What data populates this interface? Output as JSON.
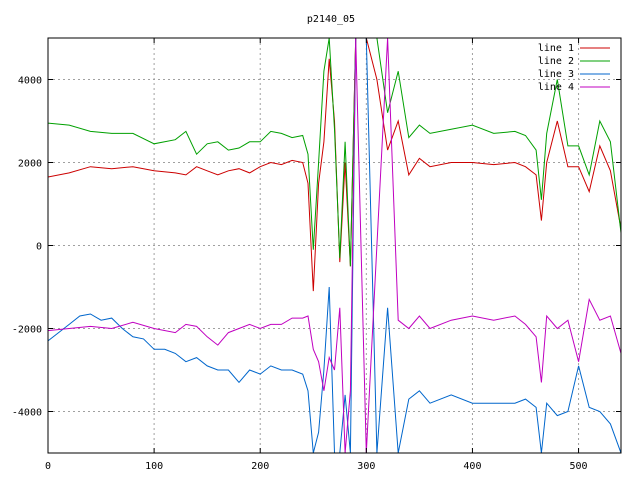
{
  "chart_data": {
    "type": "line",
    "title": "p2140_05",
    "xlabel": "",
    "ylabel": "",
    "xlim": [
      0,
      540
    ],
    "ylim": [
      -5000,
      5000
    ],
    "xticks": [
      0,
      100,
      200,
      300,
      400,
      500
    ],
    "yticks": [
      -4000,
      -2000,
      0,
      2000,
      4000
    ],
    "grid": true,
    "legend_position": "top-right",
    "series": [
      {
        "name": "line 1",
        "color": "#cc0000",
        "x": [
          0,
          20,
          40,
          60,
          80,
          100,
          120,
          130,
          140,
          150,
          160,
          170,
          180,
          190,
          200,
          210,
          220,
          230,
          240,
          245,
          250,
          255,
          260,
          265,
          270,
          275,
          280,
          285,
          290,
          300,
          310,
          320,
          330,
          340,
          350,
          360,
          380,
          400,
          420,
          440,
          450,
          460,
          465,
          470,
          480,
          490,
          500,
          510,
          520,
          530,
          540
        ],
        "y": [
          1650,
          1750,
          1900,
          1850,
          1900,
          1800,
          1750,
          1700,
          1900,
          1800,
          1700,
          1800,
          1850,
          1750,
          1900,
          2000,
          1950,
          2050,
          2000,
          1500,
          -1100,
          1500,
          2500,
          4500,
          3000,
          -400,
          2000,
          -500,
          5000,
          5000,
          4000,
          2300,
          3000,
          1700,
          2100,
          1900,
          2000,
          2000,
          1950,
          2000,
          1900,
          1700,
          600,
          2000,
          3000,
          1900,
          1900,
          1300,
          2400,
          1800,
          400
        ]
      },
      {
        "name": "line 2",
        "color": "#00a000",
        "x": [
          0,
          20,
          40,
          60,
          80,
          100,
          120,
          130,
          140,
          150,
          160,
          170,
          180,
          190,
          200,
          210,
          220,
          230,
          240,
          245,
          250,
          255,
          260,
          265,
          270,
          275,
          280,
          285,
          290,
          300,
          310,
          320,
          330,
          340,
          350,
          360,
          380,
          400,
          420,
          440,
          450,
          460,
          465,
          470,
          480,
          490,
          500,
          510,
          520,
          530,
          540
        ],
        "y": [
          2950,
          2900,
          2750,
          2700,
          2700,
          2450,
          2550,
          2750,
          2200,
          2450,
          2500,
          2300,
          2350,
          2500,
          2500,
          2750,
          2700,
          2600,
          2650,
          2200,
          -100,
          2000,
          4200,
          5000,
          2800,
          -300,
          2500,
          -500,
          5000,
          5000,
          5000,
          3200,
          4200,
          2600,
          2900,
          2700,
          2800,
          2900,
          2700,
          2750,
          2650,
          2300,
          1100,
          2700,
          4000,
          2400,
          2400,
          1700,
          3000,
          2500,
          300
        ]
      },
      {
        "name": "line 3",
        "color": "#0066cc",
        "x": [
          0,
          10,
          20,
          30,
          40,
          50,
          60,
          70,
          80,
          90,
          100,
          110,
          120,
          130,
          140,
          150,
          160,
          170,
          180,
          190,
          200,
          210,
          220,
          230,
          240,
          245,
          250,
          255,
          260,
          265,
          270,
          275,
          280,
          285,
          290,
          300,
          310,
          320,
          330,
          340,
          350,
          360,
          380,
          400,
          420,
          440,
          450,
          460,
          465,
          470,
          480,
          490,
          500,
          510,
          520,
          530,
          540
        ],
        "y": [
          -2300,
          -2100,
          -1900,
          -1700,
          -1650,
          -1800,
          -1750,
          -2000,
          -2200,
          -2250,
          -2500,
          -2500,
          -2600,
          -2800,
          -2700,
          -2900,
          -3000,
          -3000,
          -3300,
          -3000,
          -3100,
          -2900,
          -3000,
          -3000,
          -3100,
          -3500,
          -5000,
          -4500,
          -3000,
          -1000,
          -5000,
          -5000,
          -3600,
          -5000,
          5000,
          5000,
          -5000,
          -1500,
          -5000,
          -3700,
          -3500,
          -3800,
          -3600,
          -3800,
          -3800,
          -3800,
          -3700,
          -3900,
          -5000,
          -3800,
          -4100,
          -4000,
          -2900,
          -3900,
          -4000,
          -4300,
          -5000
        ]
      },
      {
        "name": "line 4",
        "color": "#c000c0",
        "x": [
          0,
          20,
          40,
          60,
          80,
          100,
          120,
          130,
          140,
          150,
          160,
          170,
          180,
          190,
          200,
          210,
          220,
          230,
          240,
          245,
          250,
          255,
          260,
          265,
          270,
          275,
          280,
          285,
          290,
          300,
          310,
          320,
          330,
          340,
          350,
          360,
          380,
          400,
          420,
          440,
          450,
          460,
          465,
          470,
          480,
          490,
          500,
          510,
          520,
          530,
          540
        ],
        "y": [
          -2050,
          -2000,
          -1950,
          -2000,
          -1850,
          -2000,
          -2100,
          -1900,
          -1950,
          -2200,
          -2400,
          -2100,
          -2000,
          -1900,
          -2000,
          -1900,
          -1900,
          -1750,
          -1750,
          -1700,
          -2500,
          -2800,
          -3500,
          -2700,
          -3000,
          -1500,
          -5000,
          -3500,
          5000,
          -5000,
          0,
          5000,
          -1800,
          -2000,
          -1700,
          -2000,
          -1800,
          -1700,
          -1800,
          -1700,
          -1900,
          -2200,
          -3300,
          -1700,
          -2000,
          -1800,
          -2800,
          -1300,
          -1800,
          -1700,
          -2600
        ]
      }
    ]
  }
}
